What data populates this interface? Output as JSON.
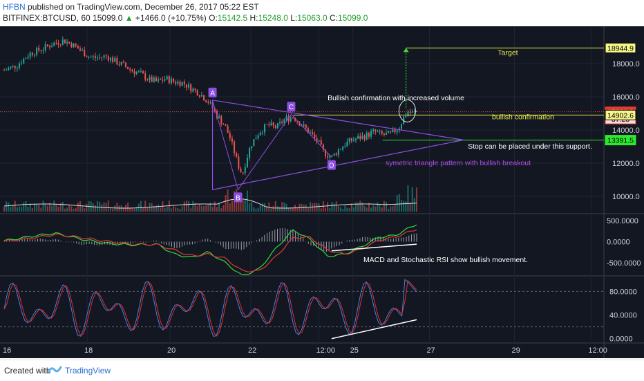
{
  "header": {
    "author": "HFBN",
    "published_text": "published on TradingView.com, December 26, 2017 05:22 EST",
    "symbol": "BITFINEX:BTCUSD, 60",
    "last_price": "15099.0",
    "change": "+1466.0 (+10.75%)",
    "open_label": "O:",
    "open": "15142.5",
    "high_label": "H:",
    "high": "15248.0",
    "low_label": "L:",
    "low": "15063.0",
    "close_label": "C:",
    "close": "15099.0"
  },
  "footer": {
    "created_with": "Created with",
    "brand": "TradingView",
    "logo_icon": "tradingview-logo-icon"
  },
  "colors": {
    "background": "#131722",
    "up": "#26a69a",
    "down": "#ef5350",
    "triangle": "#8c4fe0",
    "annotation_yellow": "#e8e84a",
    "support_green": "#3cdc3c",
    "macd_green": "#36d936",
    "signal_red": "#e03a3a",
    "stoch_red": "#e03030",
    "stoch_blue": "#4a7fe0"
  },
  "chart_data": [
    {
      "panel": "price",
      "type": "candlestick",
      "ylim": [
        9000,
        20000
      ],
      "y_ticks": [
        "18000.0",
        "16000.0",
        "14000.0",
        "12000.0",
        "10000.0"
      ],
      "y_tick_values": [
        18000,
        16000,
        14000,
        12000,
        10000
      ],
      "x_ticks": [
        "16",
        "18",
        "20",
        "22",
        "12:00",
        "25",
        "27",
        "29",
        "12:00"
      ],
      "price_tags": [
        {
          "label": "18944.9",
          "value": 18944.9,
          "style": "yellow"
        },
        {
          "label": "15099.0",
          "value": 15099.0,
          "style": "red"
        },
        {
          "label": "37:28",
          "value": 14660,
          "style": "red-timer"
        },
        {
          "label": "14902.6",
          "value": 14902.6,
          "style": "yellow"
        },
        {
          "label": "13391.5",
          "value": 13391.5,
          "style": "green"
        }
      ],
      "price_path": [
        [
          0,
          17600
        ],
        [
          3,
          17900
        ],
        [
          6,
          18600
        ],
        [
          9,
          18900
        ],
        [
          12,
          19250
        ],
        [
          14,
          19400
        ],
        [
          16,
          19150
        ],
        [
          18,
          18800
        ],
        [
          20,
          18400
        ],
        [
          22,
          18350
        ],
        [
          24,
          18450
        ],
        [
          26,
          18150
        ],
        [
          28,
          17900
        ],
        [
          30,
          17600
        ],
        [
          32,
          17400
        ],
        [
          34,
          17050
        ],
        [
          36,
          16900
        ],
        [
          38,
          17100
        ],
        [
          40,
          16900
        ],
        [
          42,
          16850
        ],
        [
          44,
          16500
        ],
        [
          46,
          16200
        ],
        [
          48,
          15700
        ],
        [
          50,
          14900
        ],
        [
          52,
          14200
        ],
        [
          53,
          13600
        ],
        [
          54,
          12800
        ],
        [
          55,
          11900
        ],
        [
          56,
          11300
        ],
        [
          57,
          12300
        ],
        [
          58,
          13100
        ],
        [
          60,
          13900
        ],
        [
          62,
          14300
        ],
        [
          64,
          14150
        ],
        [
          66,
          14650
        ],
        [
          68,
          14800
        ],
        [
          70,
          14300
        ],
        [
          72,
          13800
        ],
        [
          74,
          13200
        ],
        [
          75,
          12700
        ],
        [
          77,
          12350
        ],
        [
          79,
          12900
        ],
        [
          81,
          13300
        ],
        [
          83,
          13500
        ],
        [
          85,
          13650
        ],
        [
          87,
          13900
        ],
        [
          89,
          13700
        ],
        [
          91,
          13750
        ],
        [
          93,
          14200
        ],
        [
          94,
          14800
        ],
        [
          95,
          15100
        ],
        [
          96,
          15000
        ],
        [
          97,
          15099
        ]
      ],
      "pattern_points": [
        {
          "label": "A",
          "x": 49,
          "y": 15800
        },
        {
          "label": "B",
          "x": 55,
          "y": 10400
        },
        {
          "label": "C",
          "x": 67.5,
          "y": 14950
        },
        {
          "label": "D",
          "x": 77,
          "y": 12350
        }
      ],
      "triangle_apex": {
        "x": 108,
        "y": 13400
      },
      "triangle_base": [
        {
          "x": 49,
          "y": 15800
        },
        {
          "x": 49,
          "y": 10400
        }
      ],
      "levels": [
        {
          "name": "target",
          "value": 18944.9,
          "color": "yellow"
        },
        {
          "name": "current",
          "value": 15099.0,
          "color": "red-dotted"
        },
        {
          "name": "confirmation",
          "value": 14902.6,
          "color": "yellow"
        },
        {
          "name": "support",
          "value": 13391.5,
          "color": "green"
        }
      ],
      "annotations": [
        {
          "text": "Target",
          "color": "yellow"
        },
        {
          "text": "Bullish confirmation with increased volume",
          "color": "white"
        },
        {
          "text": "bullish confirmation",
          "color": "yellow"
        },
        {
          "text": "Stop can be placed under this support.",
          "color": "white"
        },
        {
          "text": "symetric triangle pattern with bullish breakout",
          "color": "purple"
        }
      ]
    },
    {
      "panel": "macd",
      "type": "line",
      "ylim": [
        -800,
        650
      ],
      "y_ticks": [
        "500.0000",
        "0.0000",
        "-500.0000"
      ],
      "y_tick_values": [
        500,
        0,
        -500
      ],
      "series": [
        {
          "role": "macd",
          "color": "green",
          "points": [
            [
              0,
              20
            ],
            [
              6,
              120
            ],
            [
              12,
              200
            ],
            [
              18,
              60
            ],
            [
              24,
              -40
            ],
            [
              30,
              -80
            ],
            [
              36,
              -60
            ],
            [
              40,
              -300
            ],
            [
              44,
              -380
            ],
            [
              48,
              -250
            ],
            [
              52,
              -500
            ],
            [
              56,
              -820
            ],
            [
              60,
              -650
            ],
            [
              64,
              -150
            ],
            [
              68,
              280
            ],
            [
              72,
              50
            ],
            [
              76,
              -350
            ],
            [
              80,
              -300
            ],
            [
              84,
              -120
            ],
            [
              88,
              100
            ],
            [
              92,
              150
            ],
            [
              97,
              420
            ]
          ]
        },
        {
          "role": "signal",
          "color": "red",
          "points": [
            [
              0,
              10
            ],
            [
              6,
              80
            ],
            [
              12,
              170
            ],
            [
              18,
              100
            ],
            [
              24,
              10
            ],
            [
              30,
              -60
            ],
            [
              36,
              -70
            ],
            [
              40,
              -200
            ],
            [
              44,
              -340
            ],
            [
              48,
              -300
            ],
            [
              52,
              -400
            ],
            [
              56,
              -700
            ],
            [
              60,
              -700
            ],
            [
              64,
              -350
            ],
            [
              68,
              100
            ],
            [
              72,
              100
            ],
            [
              76,
              -200
            ],
            [
              80,
              -300
            ],
            [
              84,
              -180
            ],
            [
              88,
              30
            ],
            [
              92,
              110
            ],
            [
              97,
              300
            ]
          ]
        }
      ],
      "annotation": "MACD and Stochastic RSI show bullish movement.",
      "divergence_line": {
        "from": [
          77,
          -220
        ],
        "to": [
          97,
          -60
        ]
      }
    },
    {
      "panel": "stoch_rsi",
      "type": "line",
      "ylim": [
        -5,
        105
      ],
      "y_ticks": [
        "80.0000",
        "40.0000",
        "0.0000"
      ],
      "y_tick_values": [
        80,
        40,
        0
      ],
      "levels": [
        80,
        20
      ],
      "divergence_line": {
        "from": [
          77,
          0
        ],
        "to": [
          97,
          32
        ]
      }
    }
  ]
}
